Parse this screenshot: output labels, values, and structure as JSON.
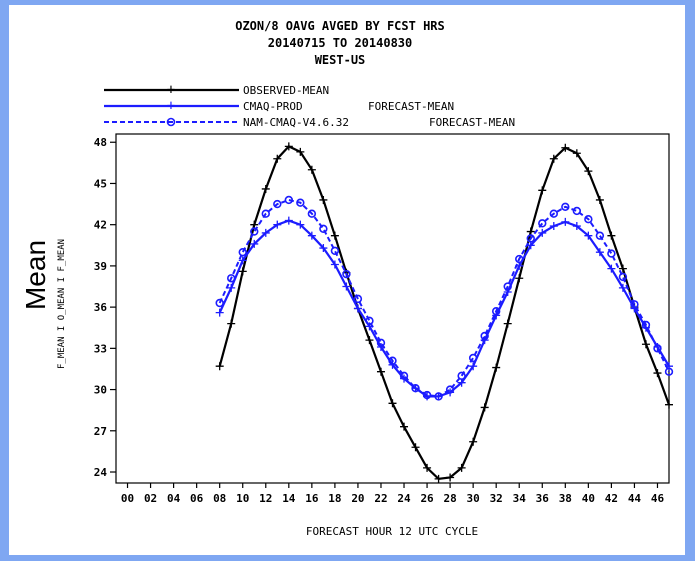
{
  "chart_data": {
    "type": "line",
    "title_lines": [
      "OZON/8  OAVG  AVGED BY FCST HRS",
      "20140715 TO 20140830",
      "WEST-US"
    ],
    "xlabel": "FORECAST HOUR   12 UTC CYCLE",
    "ylabel_big": "Mean",
    "ylabel_small": "F_MEAN I O_MEAN I F_MEAN",
    "x_ticks": [
      "00",
      "02",
      "04",
      "06",
      "08",
      "10",
      "12",
      "14",
      "16",
      "18",
      "20",
      "22",
      "24",
      "26",
      "28",
      "30",
      "32",
      "34",
      "36",
      "38",
      "40",
      "42",
      "44",
      "46"
    ],
    "xlim": [
      -1,
      47
    ],
    "y_ticks": [
      "24",
      "27",
      "30",
      "33",
      "36",
      "39",
      "42",
      "45",
      "48"
    ],
    "ylim": [
      23.2,
      48.6
    ],
    "grid": false,
    "legend_placement": "top-left",
    "legend": [
      {
        "label": "OBSERVED-MEAN",
        "note": ""
      },
      {
        "label": "CMAQ-PROD",
        "note": "FORECAST-MEAN"
      },
      {
        "label": "NAM-CMAQ-V4.6.32",
        "note": "FORECAST-MEAN"
      }
    ],
    "x": [
      8,
      9,
      10,
      11,
      12,
      13,
      14,
      15,
      16,
      17,
      18,
      19,
      20,
      21,
      22,
      23,
      24,
      25,
      26,
      27,
      28,
      29,
      30,
      31,
      32,
      33,
      34,
      35,
      36,
      37,
      38,
      39,
      40,
      41,
      42,
      43,
      44,
      45,
      46,
      47
    ],
    "series": [
      {
        "name": "OBSERVED-MEAN",
        "color": "#000000",
        "style": "solid",
        "marker": "plus",
        "values": [
          31.7,
          34.8,
          38.6,
          42.0,
          44.6,
          46.8,
          47.7,
          47.3,
          46.0,
          43.8,
          41.2,
          38.5,
          35.9,
          33.6,
          31.3,
          29.0,
          27.3,
          25.8,
          24.3,
          23.5,
          23.6,
          24.3,
          26.2,
          28.7,
          31.6,
          34.8,
          38.1,
          41.5,
          44.5,
          46.8,
          47.6,
          47.2,
          45.9,
          43.8,
          41.2,
          38.8,
          36.0,
          33.3,
          31.2,
          28.9
        ]
      },
      {
        "name": "CMAQ-PROD",
        "color": "#1c1cff",
        "style": "solid",
        "marker": "plus",
        "values": [
          35.6,
          37.4,
          39.4,
          40.6,
          41.4,
          42.0,
          42.3,
          42.0,
          41.2,
          40.3,
          39.1,
          37.5,
          35.9,
          34.6,
          33.1,
          31.8,
          30.8,
          30.1,
          29.5,
          29.5,
          29.8,
          30.5,
          31.7,
          33.6,
          35.4,
          37.1,
          39.0,
          40.5,
          41.4,
          41.9,
          42.2,
          41.9,
          41.2,
          40.0,
          38.8,
          37.4,
          35.9,
          34.5,
          33.1,
          31.7
        ]
      },
      {
        "name": "NAM-CMAQ-V4.6.32",
        "color": "#1c1cff",
        "style": "dashed",
        "marker": "circle",
        "values": [
          36.3,
          38.1,
          40.0,
          41.5,
          42.8,
          43.5,
          43.8,
          43.6,
          42.8,
          41.7,
          40.1,
          38.4,
          36.6,
          35.0,
          33.4,
          32.1,
          31.0,
          30.1,
          29.6,
          29.5,
          30.0,
          31.0,
          32.3,
          33.9,
          35.7,
          37.5,
          39.5,
          41.0,
          42.1,
          42.8,
          43.3,
          43.0,
          42.4,
          41.2,
          39.9,
          38.2,
          36.2,
          34.7,
          33.0,
          31.3
        ]
      }
    ]
  }
}
